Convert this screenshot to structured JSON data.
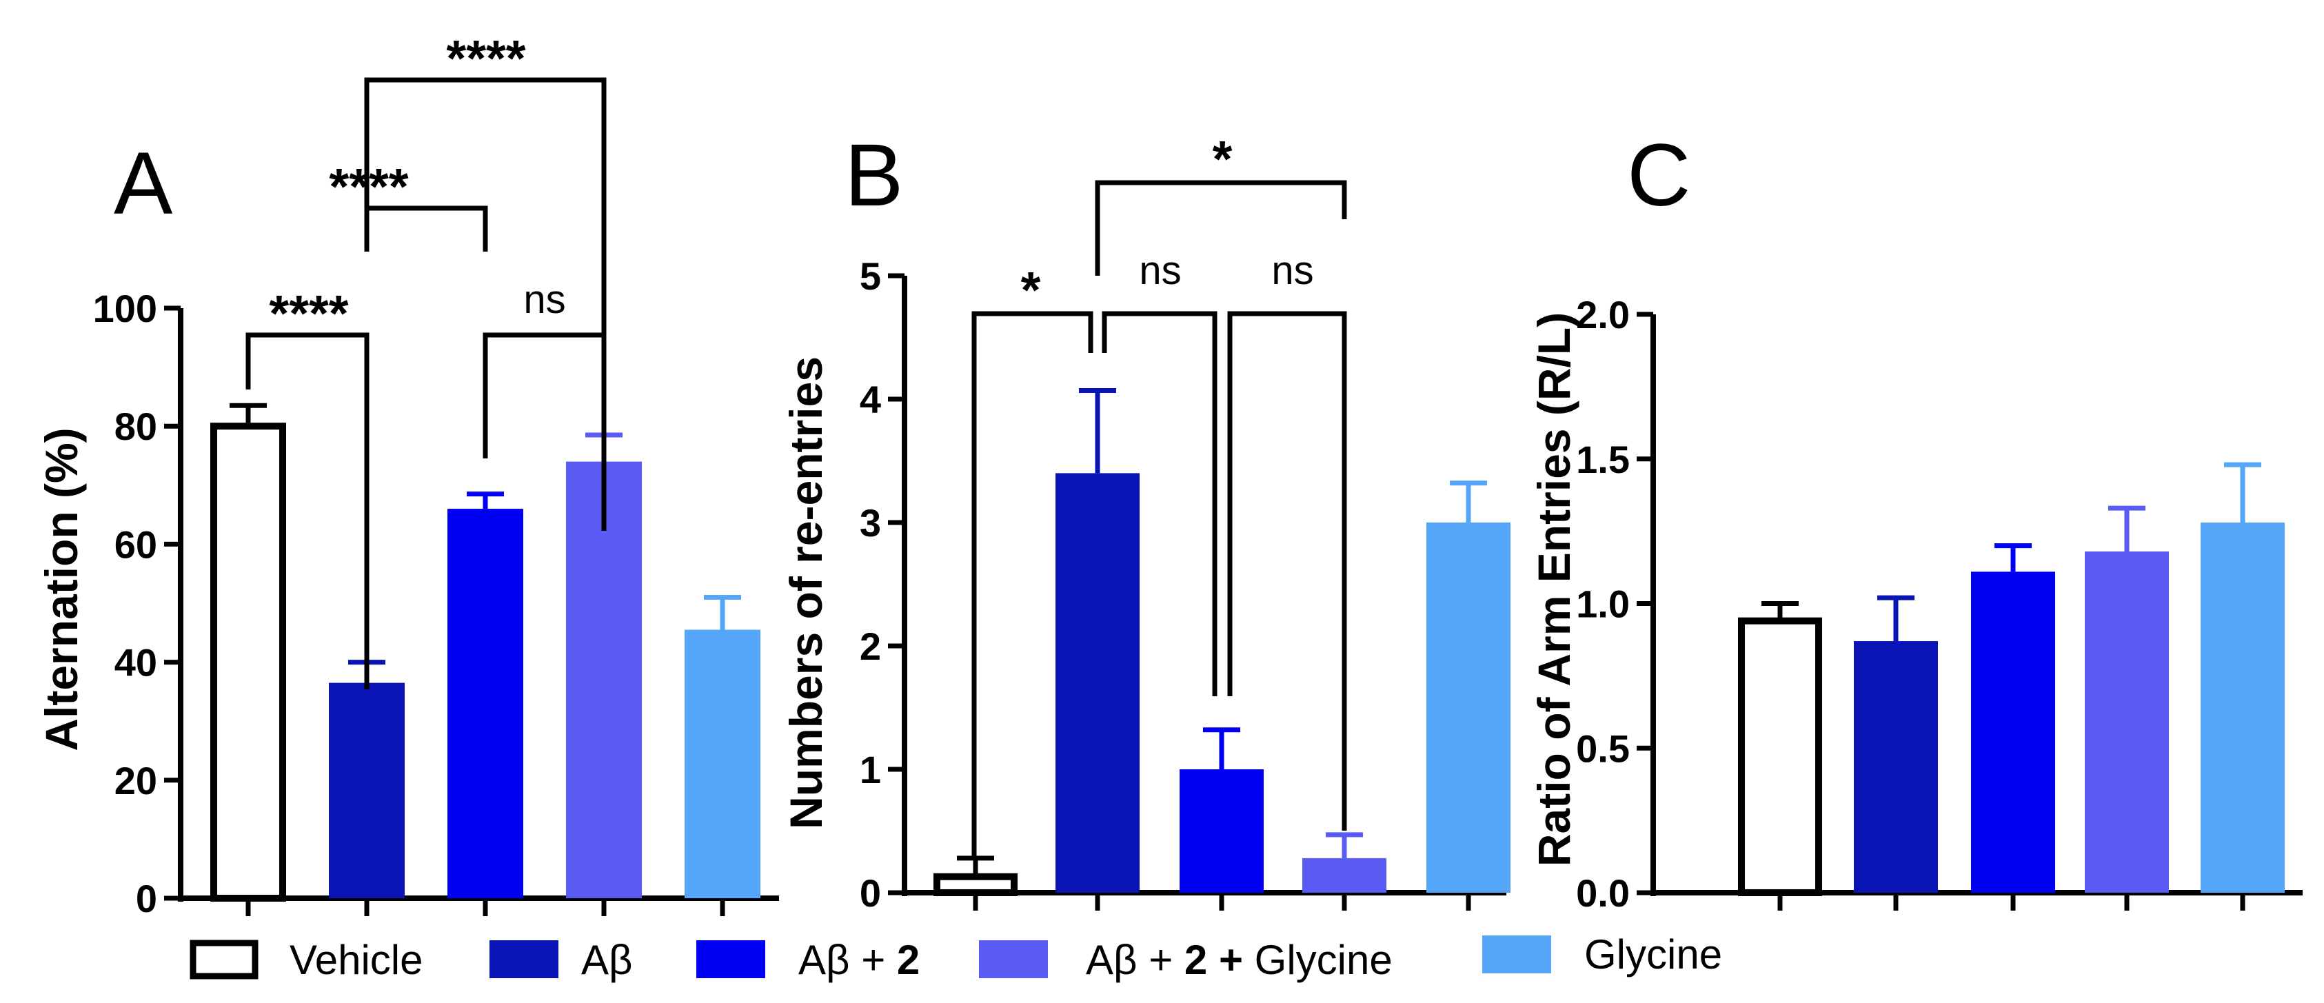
{
  "chart_data": [
    {
      "panel": "A",
      "type": "bar",
      "ylabel": "Alternation (%)",
      "ylim": [
        0,
        100
      ],
      "yticks": [
        "0",
        "20",
        "40",
        "60",
        "80",
        "100"
      ],
      "values": [
        80,
        36.5,
        66,
        74,
        45.5
      ],
      "errors": [
        3.5,
        3.5,
        2.5,
        4.5,
        5.5
      ],
      "significance": [
        {
          "from": 0,
          "to": 1,
          "label": "****"
        },
        {
          "from": 3,
          "to": 2,
          "label": "ns"
        },
        {
          "from": 1,
          "to": 2,
          "label": "****"
        },
        {
          "from": 1,
          "to": 3,
          "label": "****"
        }
      ]
    },
    {
      "panel": "B",
      "type": "bar",
      "ylabel": "Numbers of re-entries",
      "ylim": [
        0,
        5
      ],
      "yticks": [
        "0",
        "1",
        "2",
        "3",
        "4",
        "5"
      ],
      "values": [
        0.13,
        3.4,
        1.0,
        0.28,
        3.0
      ],
      "errors": [
        0.15,
        0.67,
        0.32,
        0.19,
        0.32
      ],
      "significance": [
        {
          "from": 0,
          "to": 1,
          "label": "*"
        },
        {
          "from": 1,
          "to": 2,
          "label": "ns"
        },
        {
          "from": 2,
          "to": 3,
          "label": "ns"
        },
        {
          "from": 1,
          "to": 3,
          "label": "*"
        }
      ]
    },
    {
      "panel": "C",
      "type": "bar",
      "ylabel": "Ratio of Arm Entries (R/L)",
      "ylim": [
        0,
        2
      ],
      "yticks": [
        "0.0",
        "0.5",
        "1.0",
        "1.5",
        "2.0"
      ],
      "values": [
        0.94,
        0.87,
        1.11,
        1.18,
        1.28
      ],
      "errors": [
        0.06,
        0.15,
        0.09,
        0.15,
        0.2
      ],
      "significance": []
    }
  ],
  "legend": [
    {
      "name": "vehicle",
      "text": "Vehicle",
      "bold": ""
    },
    {
      "name": "abeta",
      "text": "Aβ",
      "bold": ""
    },
    {
      "name": "abeta-2",
      "text": "Aβ + ",
      "bold": "2"
    },
    {
      "name": "abeta-2-glycine",
      "text": "Aβ + ",
      "bold": "2 +",
      "suffix": " Glycine"
    },
    {
      "name": "glycine",
      "text": "Glycine",
      "bold": ""
    }
  ],
  "colors": {
    "vehicle": "#ffffff",
    "abeta": "#0a14b4",
    "abeta_2": "#0000f5",
    "abeta_2_glycine": "#5a5af5",
    "glycine": "#55a5f8",
    "axis": "#000000"
  }
}
